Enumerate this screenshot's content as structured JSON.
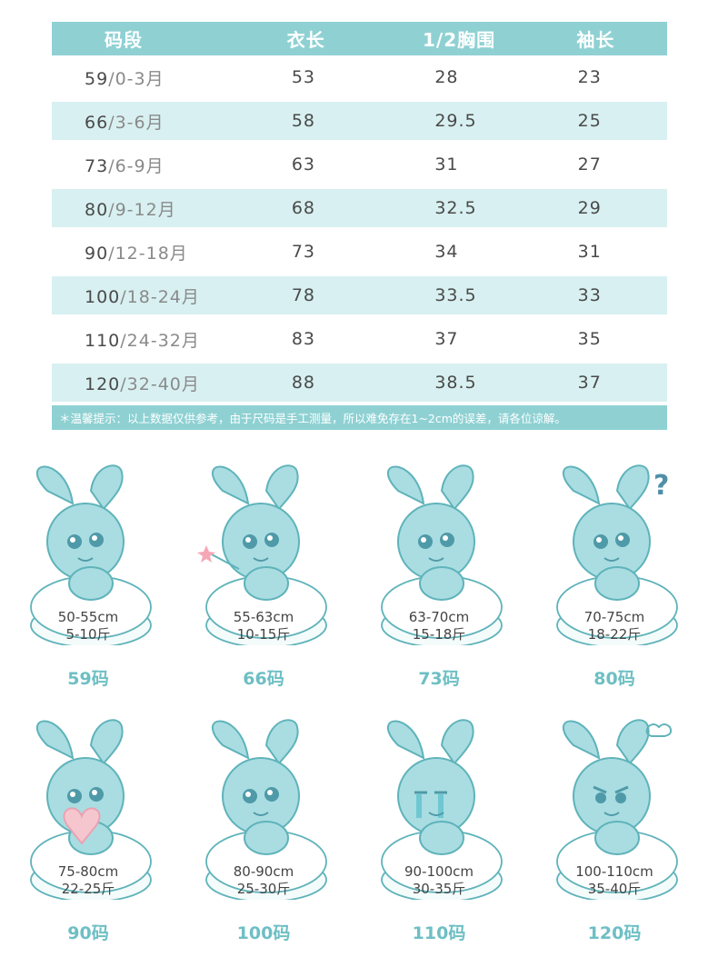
{
  "table": {
    "headers": [
      "码段",
      "衣长",
      "1/2胸围",
      "袖长"
    ],
    "rows": [
      {
        "size": "59",
        "age": "0-3月",
        "length": "53",
        "chest": "28",
        "sleeve": "23"
      },
      {
        "size": "66",
        "age": "3-6月",
        "length": "58",
        "chest": "29.5",
        "sleeve": "25"
      },
      {
        "size": "73",
        "age": "6-9月",
        "length": "63",
        "chest": "31",
        "sleeve": "27"
      },
      {
        "size": "80",
        "age": "9-12月",
        "length": "68",
        "chest": "32.5",
        "sleeve": "29"
      },
      {
        "size": "90",
        "age": "12-18月",
        "length": "73",
        "chest": "34",
        "sleeve": "31"
      },
      {
        "size": "100",
        "age": "18-24月",
        "length": "78",
        "chest": "33.5",
        "sleeve": "33"
      },
      {
        "size": "110",
        "age": "24-32月",
        "length": "83",
        "chest": "37",
        "sleeve": "35"
      },
      {
        "size": "120",
        "age": "32-40月",
        "length": "88",
        "chest": "38.5",
        "sleeve": "37"
      }
    ],
    "separator": "/",
    "notice": "＊温馨提示：以上数据仅供参考，由于尺码是手工测量，所以难免存在1~2cm的误差，请各位谅解。"
  },
  "cards": [
    {
      "height": "50-55cm",
      "weight": "5-10斤",
      "size": "59码",
      "pose": "sitting"
    },
    {
      "height": "55-63cm",
      "weight": "10-15斤",
      "size": "66码",
      "pose": "wand"
    },
    {
      "height": "63-70cm",
      "weight": "15-18斤",
      "size": "73码",
      "pose": "happy"
    },
    {
      "height": "70-75cm",
      "weight": "18-22斤",
      "size": "80码",
      "pose": "question",
      "symbol": "?"
    },
    {
      "height": "75-80cm",
      "weight": "22-25斤",
      "size": "90码",
      "pose": "heart"
    },
    {
      "height": "80-90cm",
      "weight": "25-30斤",
      "size": "100码",
      "pose": "lying"
    },
    {
      "height": "90-100cm",
      "weight": "30-35斤",
      "size": "110码",
      "pose": "crying"
    },
    {
      "height": "100-110cm",
      "weight": "35-40斤",
      "size": "120码",
      "pose": "angry"
    }
  ],
  "colors": {
    "header": "#8fd1d3",
    "row_alt": "#d8f0f1",
    "bunny_fill": "#a9dde2",
    "bunny_stroke": "#5fb3ba",
    "size_label": "#6dbfc4"
  }
}
